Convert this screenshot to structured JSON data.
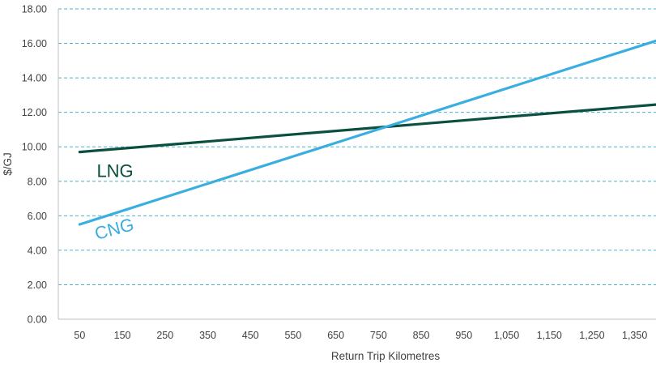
{
  "chart_data": {
    "type": "line",
    "xlabel": "Return Trip Kilometres",
    "ylabel": "$/GJ",
    "x_ticks": [
      "50",
      "150",
      "250",
      "350",
      "450",
      "550",
      "650",
      "750",
      "850",
      "950",
      "1,050",
      "1,150",
      "1,250",
      "1,350"
    ],
    "y_ticks": [
      "0.00",
      "2.00",
      "4.00",
      "6.00",
      "8.00",
      "10.00",
      "12.00",
      "14.00",
      "16.00",
      "18.00"
    ],
    "xlim": [
      0,
      1400
    ],
    "ylim": [
      0,
      18
    ],
    "grid": "horizontal dashed",
    "legend": "inline labels",
    "series": [
      {
        "name": "LNG",
        "color": "#0b4f3f",
        "x": [
          50,
          1400
        ],
        "y": [
          9.7,
          12.45
        ]
      },
      {
        "name": "CNG",
        "color": "#3aaee0",
        "x": [
          50,
          1400
        ],
        "y": [
          5.5,
          16.15
        ]
      }
    ]
  }
}
